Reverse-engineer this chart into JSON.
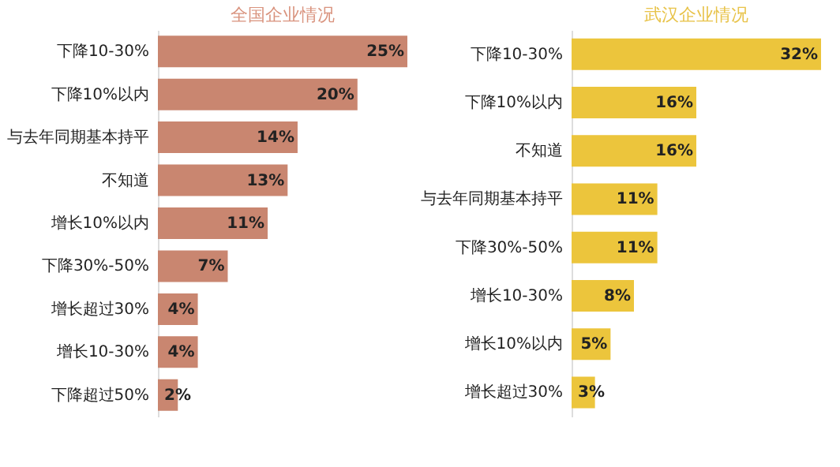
{
  "chart_data": [
    {
      "type": "bar",
      "orientation": "horizontal",
      "title": "全国企业情况",
      "categories": [
        "下降10-30%",
        "下降10%以内",
        "与去年同期基本持平",
        "不知道",
        "增长10%以内",
        "下降30%-50%",
        "增长超过30%",
        "增长10-30%",
        "下降超过50%"
      ],
      "values": [
        25,
        20,
        14,
        13,
        11,
        7,
        4,
        4,
        2
      ],
      "value_labels": [
        "25%",
        "20%",
        "14%",
        "13%",
        "11%",
        "7%",
        "4%",
        "4%",
        "2%"
      ],
      "color": "#c98670"
    },
    {
      "type": "bar",
      "orientation": "horizontal",
      "title": "武汉企业情况",
      "categories": [
        "下降10-30%",
        "下降10%以内",
        "不知道",
        "与去年同期基本持平",
        "下降30%-50%",
        "增长10-30%",
        "增长10%以内",
        "增长超过30%"
      ],
      "values": [
        32,
        16,
        16,
        11,
        11,
        8,
        5,
        3
      ],
      "value_labels": [
        "32%",
        "16%",
        "16%",
        "11%",
        "11%",
        "8%",
        "5%",
        "3%"
      ],
      "color": "#ecc53c"
    }
  ]
}
